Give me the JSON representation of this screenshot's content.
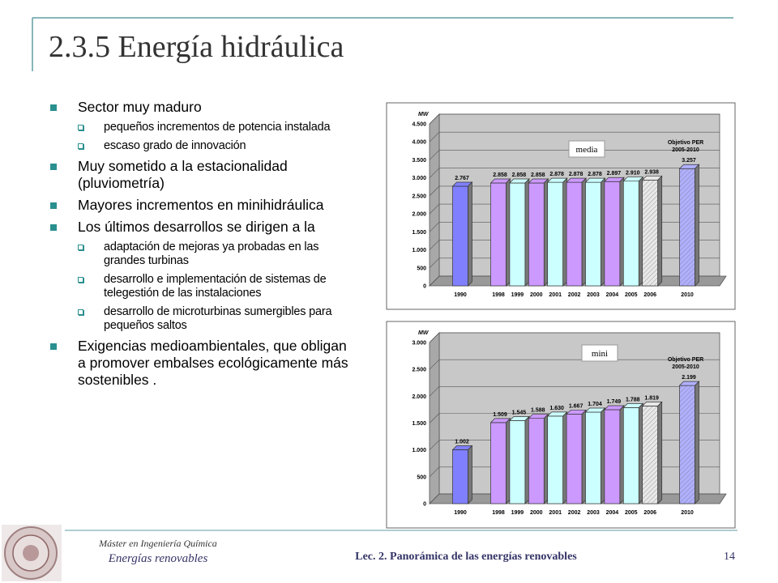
{
  "title": "2.3.5 Energía hidráulica",
  "bullets": [
    {
      "text": "Sector muy maduro",
      "sub": [
        "pequeños incrementos de potencia instalada",
        "escaso grado de innovación"
      ]
    },
    {
      "text": "Muy sometido a la estacionalidad (pluviometría)",
      "sub": []
    },
    {
      "text": "Mayores incrementos en minihidráulica",
      "sub": []
    },
    {
      "text": "Los últimos desarrollos se dirigen a la",
      "sub": [
        "adaptación de mejoras ya probadas en las grandes turbinas",
        "desarrollo e implementación de sistemas de telegestión de las instalaciones",
        "desarrollo de microturbinas sumergibles para pequeños saltos"
      ]
    },
    {
      "text": "Exigencias medioambientales, que obligan a promover embalses ecológicamente más sostenibles .",
      "sub": []
    }
  ],
  "chart_data": [
    {
      "type": "bar",
      "label": "media",
      "y_label": "MW",
      "annotation": [
        "Objetivo PER",
        "2005-2010"
      ],
      "categories": [
        "1990",
        "1998",
        "1999",
        "2000",
        "2001",
        "2002",
        "2003",
        "2004",
        "2005",
        "2006",
        "2010"
      ],
      "values": [
        2767,
        2858,
        2858,
        2858,
        2878,
        2878,
        2878,
        2897,
        2910,
        2938,
        3257
      ],
      "value_labels": [
        "2.767",
        "2.858",
        "2.858",
        "2.858",
        "2.878",
        "2.878",
        "2.878",
        "2.897",
        "2.910",
        "2.938",
        "3.257"
      ],
      "colors": [
        "#8080ff",
        "#cc99ff",
        "#ccffff",
        "#cc99ff",
        "#ccffff",
        "#cc99ff",
        "#ccffff",
        "#cc99ff",
        "#ccffff",
        "#e8e8e8",
        "#b0b0ff"
      ],
      "ylim": [
        0,
        4500
      ],
      "yticks": [
        0,
        500,
        {
          "value": 1000,
          "label": "1.000"
        },
        {
          "value": 1500,
          "label": "1.500"
        },
        {
          "value": 2000,
          "label": "2.000"
        },
        {
          "value": 2500,
          "label": "2.500"
        },
        {
          "value": 3000,
          "label": "3.000"
        },
        {
          "value": 3500,
          "label": "3.500"
        },
        {
          "value": 4000,
          "label": "4.000"
        },
        {
          "value": 4500,
          "label": "4.500"
        }
      ]
    },
    {
      "type": "bar",
      "label": "mini",
      "y_label": "MW",
      "annotation": [
        "Objetivo PER",
        "2005-2010"
      ],
      "categories": [
        "1990",
        "1998",
        "1999",
        "2000",
        "2001",
        "2002",
        "2003",
        "2004",
        "2005",
        "2006",
        "2010"
      ],
      "values": [
        1002,
        1509,
        1545,
        1588,
        1630,
        1667,
        1704,
        1749,
        1788,
        1819,
        2199
      ],
      "value_labels": [
        "1.002",
        "1.509",
        "1.545",
        "1.588",
        "1.630",
        "1.667",
        "1.704",
        "1.749",
        "1.788",
        "1.819",
        "2.199"
      ],
      "colors": [
        "#8080ff",
        "#cc99ff",
        "#ccffff",
        "#cc99ff",
        "#ccffff",
        "#cc99ff",
        "#ccffff",
        "#cc99ff",
        "#ccffff",
        "#e8e8e8",
        "#b0b0ff"
      ],
      "ylim": [
        0,
        3000
      ],
      "yticks": [
        0,
        500,
        {
          "value": 1000,
          "label": "1.000"
        },
        {
          "value": 1500,
          "label": "1.500"
        },
        {
          "value": 2000,
          "label": "2.000"
        },
        {
          "value": 2500,
          "label": "2.500"
        },
        {
          "value": 3000,
          "label": "3.000"
        }
      ]
    }
  ],
  "footer": {
    "course": "Máster en Ingeniería Química",
    "subject": "Energías renovables",
    "lecture": "Lec. 2. Panorámica de las energías renovables",
    "page": "14"
  }
}
